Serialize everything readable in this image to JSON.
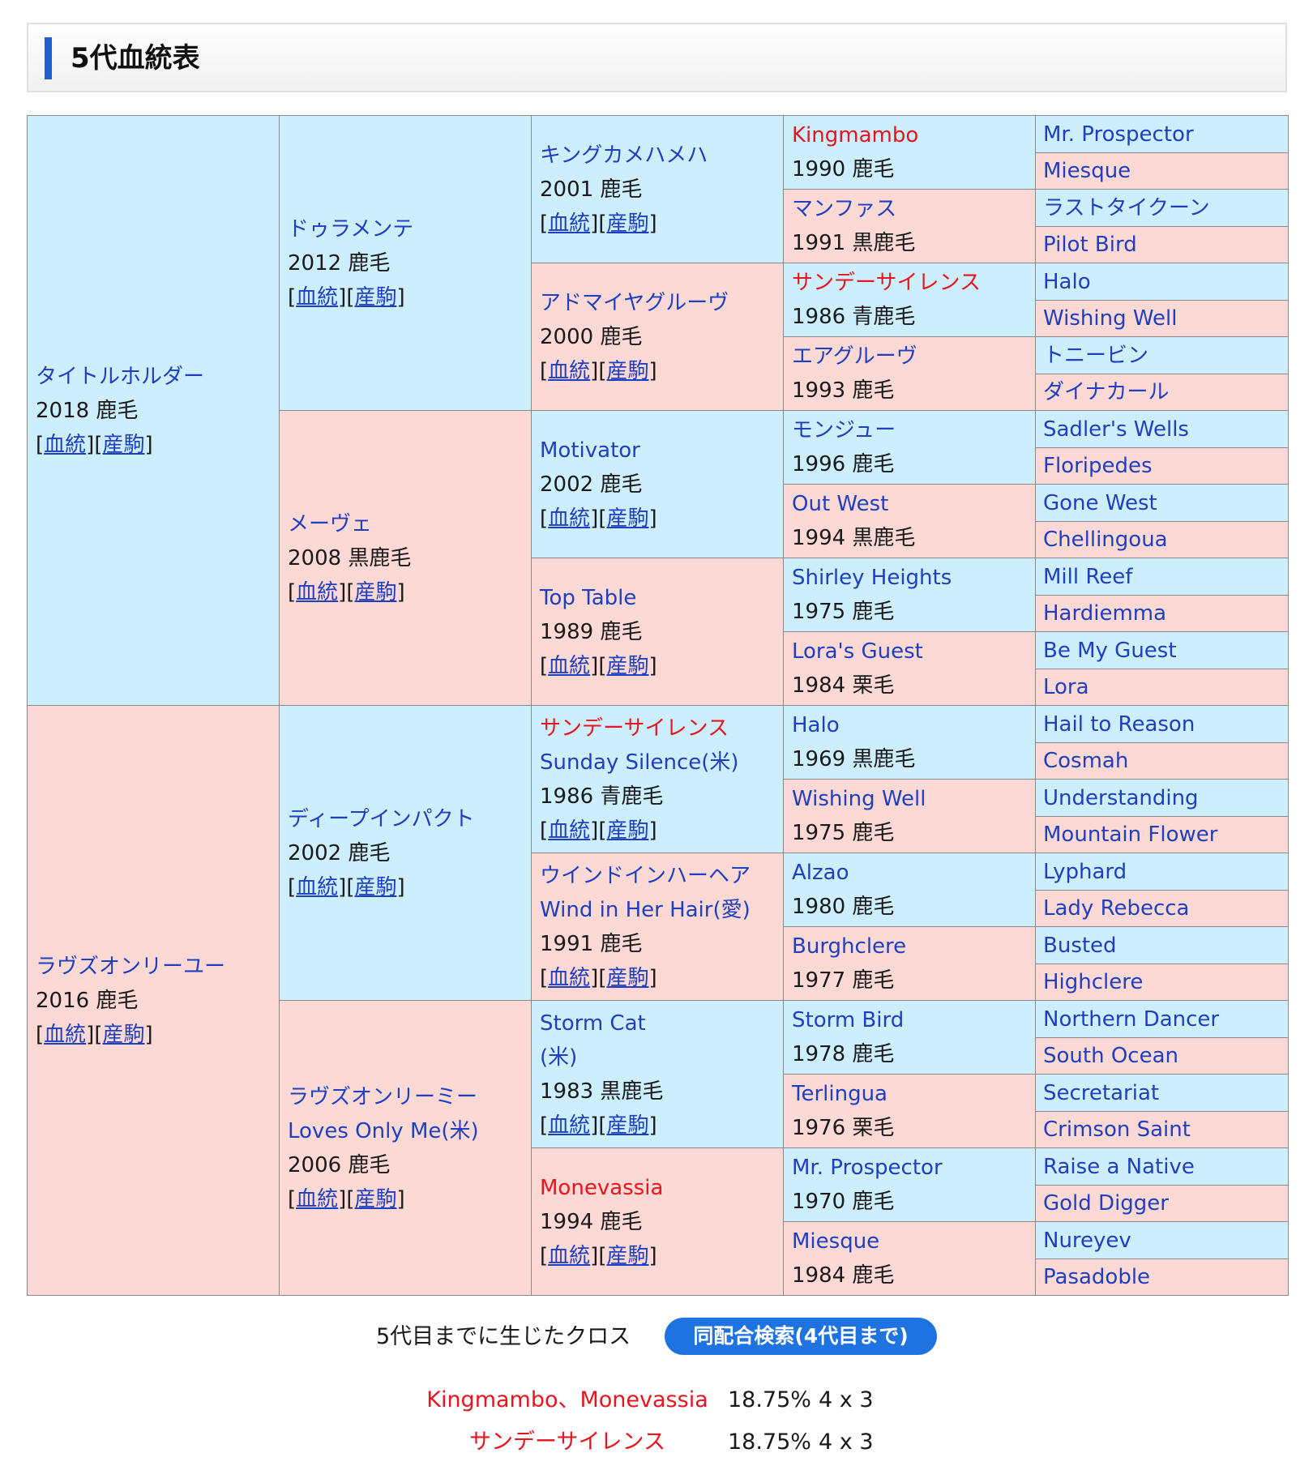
{
  "section_title": "5代血統表",
  "link_labels": {
    "pedigree": "血統",
    "offspring": "産駒"
  },
  "pedigree": {
    "gen1": [
      {
        "name": "タイトルホルダー",
        "info": "2018 鹿毛"
      },
      {
        "name": "ラヴズオンリーユー",
        "info": "2016 鹿毛"
      }
    ],
    "gen2": [
      {
        "name": "ドゥラメンテ",
        "info": "2012 鹿毛"
      },
      {
        "name": "メーヴェ",
        "info": "2008 黒鹿毛"
      },
      {
        "name": "ディープインパクト",
        "info": "2002 鹿毛"
      },
      {
        "name": "ラヴズオンリーミー",
        "sub": "Loves Only Me(米)",
        "info": "2006 鹿毛"
      }
    ],
    "gen3": [
      {
        "name": "キングカメハメハ",
        "info": "2001 鹿毛"
      },
      {
        "name": "アドマイヤグルーヴ",
        "info": "2000 鹿毛"
      },
      {
        "name": "Motivator",
        "info": "2002 鹿毛"
      },
      {
        "name": "Top Table",
        "info": "1989 鹿毛"
      },
      {
        "name": "サンデーサイレンス",
        "sub": "Sunday Silence(米)",
        "info": "1986 青鹿毛",
        "cross": true
      },
      {
        "name": "ウインドインハーヘア",
        "sub": "Wind in Her Hair(愛)",
        "info": "1991 鹿毛"
      },
      {
        "name": "Storm Cat",
        "sub": "(米)",
        "info": "1983 黒鹿毛"
      },
      {
        "name": "Monevassia",
        "info": "1994 鹿毛",
        "cross": true
      }
    ],
    "gen4": [
      {
        "name": "Kingmambo",
        "info": "1990 鹿毛",
        "cross": true
      },
      {
        "name": "マンファス",
        "info": "1991 黒鹿毛"
      },
      {
        "name": "サンデーサイレンス",
        "info": "1986 青鹿毛",
        "cross": true
      },
      {
        "name": "エアグルーヴ",
        "info": "1993 鹿毛"
      },
      {
        "name": "モンジュー",
        "info": "1996 鹿毛"
      },
      {
        "name": "Out West",
        "info": "1994 黒鹿毛"
      },
      {
        "name": "Shirley Heights",
        "info": "1975 鹿毛"
      },
      {
        "name": "Lora's Guest",
        "info": "1984 栗毛"
      },
      {
        "name": "Halo",
        "info": "1969 黒鹿毛"
      },
      {
        "name": "Wishing Well",
        "info": "1975 鹿毛"
      },
      {
        "name": "Alzao",
        "info": "1980 鹿毛"
      },
      {
        "name": "Burghclere",
        "info": "1977 鹿毛"
      },
      {
        "name": "Storm Bird",
        "info": "1978 鹿毛"
      },
      {
        "name": "Terlingua",
        "info": "1976 栗毛"
      },
      {
        "name": "Mr. Prospector",
        "info": "1970 鹿毛"
      },
      {
        "name": "Miesque",
        "info": "1984 鹿毛"
      }
    ],
    "gen5": [
      "Mr. Prospector",
      "Miesque",
      "ラストタイクーン",
      "Pilot Bird",
      "Halo",
      "Wishing Well",
      "トニービン",
      "ダイナカール",
      "Sadler's Wells",
      "Floripedes",
      "Gone West",
      "Chellingoua",
      "Mill Reef",
      "Hardiemma",
      "Be My Guest",
      "Lora",
      "Hail to Reason",
      "Cosmah",
      "Understanding",
      "Mountain Flower",
      "Lyphard",
      "Lady Rebecca",
      "Busted",
      "Highclere",
      "Northern Dancer",
      "South Ocean",
      "Secretariat",
      "Crimson Saint",
      "Raise a Native",
      "Gold Digger",
      "Nureyev",
      "Pasadoble"
    ]
  },
  "crosses_label": "5代目までに生じたクロス",
  "search_button": "同配合検索(4代目まで)",
  "crosses": [
    {
      "name": "Kingmambo、Monevassia",
      "percent": "18.75%",
      "generations": "4 x 3"
    },
    {
      "name": "サンデーサイレンス",
      "percent": "18.75%",
      "generations": "4 x 3"
    }
  ],
  "colors": {
    "male_bg": "#cdeefc",
    "female_bg": "#fcd9d5",
    "cross_red": "#e8141e",
    "link_blue": "#1f3fbf",
    "button_blue": "#1e73e0"
  }
}
